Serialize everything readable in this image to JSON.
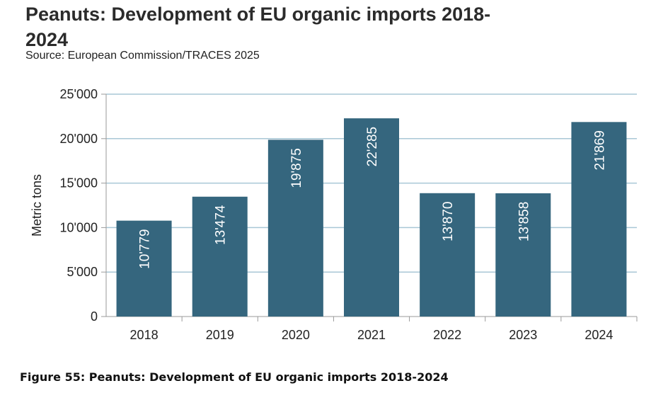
{
  "title": "Peanuts: Development of EU organic imports 2018-2024",
  "title_line1": "Peanuts: Development of EU organic imports 2018-",
  "title_line2": "2024",
  "source": "Source: European Commission/TRACES 2025",
  "caption": "Figure 55: Peanuts: Development of EU organic imports 2018-2024",
  "colors": {
    "bar": "#35667e",
    "grid": "#a9c7d6",
    "axis": "#9a9a9a"
  },
  "chart_data": {
    "type": "bar",
    "title": "Peanuts: Development of EU organic imports 2018-2024",
    "xlabel": "",
    "ylabel": "Metric tons",
    "categories": [
      "2018",
      "2019",
      "2020",
      "2021",
      "2022",
      "2023",
      "2024"
    ],
    "values": [
      10779,
      13474,
      19875,
      22285,
      13870,
      13858,
      21869
    ],
    "value_labels": [
      "10'779",
      "13'474",
      "19'875",
      "22'285",
      "13'870",
      "13'858",
      "21'869"
    ],
    "ylim": [
      0,
      25000
    ],
    "yticks": [
      0,
      5000,
      10000,
      15000,
      20000,
      25000
    ],
    "ytick_labels": [
      "0",
      "5'000",
      "10'000",
      "15'000",
      "20'000",
      "25'000"
    ],
    "grid": true,
    "legend": "none"
  }
}
